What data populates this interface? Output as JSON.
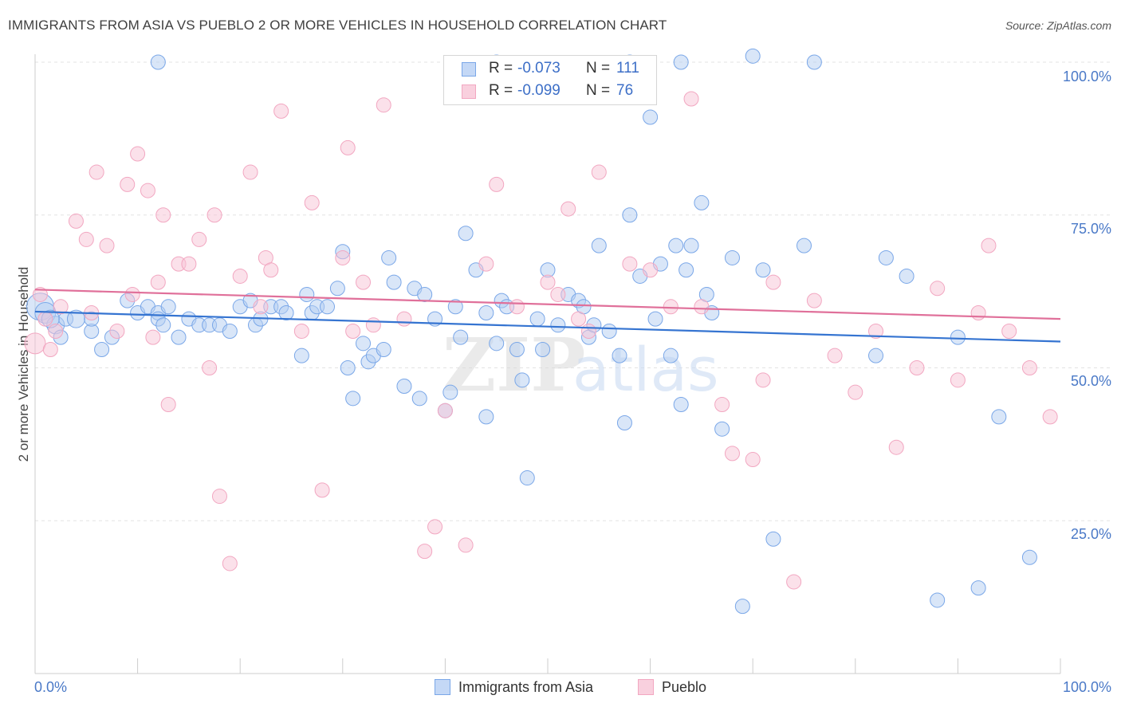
{
  "chart_data": {
    "type": "scatter",
    "title": "IMMIGRANTS FROM ASIA VS PUEBLO 2 OR MORE VEHICLES IN HOUSEHOLD CORRELATION CHART",
    "source": "Source: ZipAtlas.com",
    "ylabel": "2 or more Vehicles in Household",
    "xlabel": "",
    "xlim": [
      0,
      100
    ],
    "ylim": [
      0,
      100
    ],
    "x_tick_labels": [
      "0.0%",
      "100.0%"
    ],
    "y_ticks": [
      {
        "value": 25,
        "label": "25.0%"
      },
      {
        "value": 50,
        "label": "50.0%"
      },
      {
        "value": 75,
        "label": "75.0%"
      },
      {
        "value": 100,
        "label": "100.0%"
      }
    ],
    "grid": true,
    "watermark": "ZIPatlas",
    "legend": {
      "r_label": "R =",
      "n_label": "N =",
      "entries": [
        {
          "name": "Immigrants from Asia",
          "r": "-0.073",
          "n": "111"
        },
        {
          "name": "Pueblo",
          "r": "-0.099",
          "n": "76"
        }
      ]
    },
    "series": [
      {
        "name": "Immigrants from Asia",
        "color": "#7aa7e8",
        "trend_color": "#3574d1",
        "trend": [
          [
            0,
            59.2
          ],
          [
            100,
            54.3
          ]
        ],
        "points": [
          [
            0.5,
            60,
            4
          ],
          [
            1,
            59,
            3
          ],
          [
            2,
            57,
            2
          ],
          [
            3,
            58,
            1
          ],
          [
            4,
            58,
            2
          ],
          [
            1.5,
            58,
            2
          ],
          [
            2.5,
            55,
            1
          ],
          [
            5.5,
            56,
            1
          ],
          [
            5.5,
            58,
            1
          ],
          [
            6.5,
            53,
            1
          ],
          [
            7.5,
            55,
            1
          ],
          [
            9,
            61,
            1
          ],
          [
            10,
            59,
            1
          ],
          [
            11,
            60,
            1
          ],
          [
            12,
            59,
            1
          ],
          [
            12,
            58,
            1
          ],
          [
            14,
            55,
            1
          ],
          [
            12.5,
            57,
            1
          ],
          [
            13,
            60,
            1
          ],
          [
            15,
            58,
            1
          ],
          [
            16,
            57,
            1
          ],
          [
            17,
            57,
            1
          ],
          [
            18,
            57,
            1
          ],
          [
            19,
            56,
            1
          ],
          [
            20,
            60,
            1
          ],
          [
            21,
            61,
            1
          ],
          [
            21.5,
            57,
            1
          ],
          [
            22,
            58,
            1
          ],
          [
            23,
            60,
            1
          ],
          [
            24,
            60,
            1
          ],
          [
            24.5,
            59,
            1
          ],
          [
            26,
            52,
            1
          ],
          [
            26.5,
            62,
            1
          ],
          [
            27,
            59,
            1
          ],
          [
            27.5,
            60,
            1
          ],
          [
            28.5,
            60,
            1
          ],
          [
            29.5,
            63,
            1
          ],
          [
            30,
            69,
            1
          ],
          [
            30.5,
            50,
            1
          ],
          [
            31,
            45,
            1
          ],
          [
            32,
            54,
            1
          ],
          [
            32.5,
            51,
            1
          ],
          [
            33,
            52,
            1
          ],
          [
            34,
            53,
            1
          ],
          [
            34.5,
            68,
            1
          ],
          [
            35,
            64,
            1
          ],
          [
            36,
            47,
            1
          ],
          [
            37,
            63,
            1
          ],
          [
            37.5,
            45,
            1
          ],
          [
            38,
            62,
            1
          ],
          [
            39,
            58,
            1
          ],
          [
            40,
            43,
            1
          ],
          [
            40.5,
            46,
            1
          ],
          [
            41,
            60,
            1
          ],
          [
            41.5,
            55,
            1
          ],
          [
            42,
            72,
            1
          ],
          [
            43,
            66,
            1
          ],
          [
            44,
            59,
            1
          ],
          [
            44,
            42,
            1
          ],
          [
            45,
            54,
            1
          ],
          [
            45.5,
            61,
            1
          ],
          [
            46,
            60,
            1
          ],
          [
            47,
            53,
            1
          ],
          [
            47.5,
            48,
            1
          ],
          [
            48,
            32,
            1
          ],
          [
            49,
            58,
            1
          ],
          [
            49.5,
            53,
            1
          ],
          [
            50,
            66,
            1
          ],
          [
            51,
            57,
            1
          ],
          [
            52,
            62,
            1
          ],
          [
            53,
            61,
            1
          ],
          [
            53.5,
            60,
            1
          ],
          [
            54,
            55,
            1
          ],
          [
            54.5,
            57,
            1
          ],
          [
            55,
            70,
            1
          ],
          [
            56,
            56,
            1
          ],
          [
            57,
            52,
            1
          ],
          [
            57.5,
            41,
            1
          ],
          [
            58,
            75,
            1
          ],
          [
            59,
            65,
            1
          ],
          [
            60,
            91,
            1
          ],
          [
            60.5,
            58,
            1
          ],
          [
            61,
            67,
            1
          ],
          [
            62,
            52,
            1
          ],
          [
            62.5,
            70,
            1
          ],
          [
            63,
            44,
            1
          ],
          [
            63.5,
            66,
            1
          ],
          [
            64,
            70,
            1
          ],
          [
            65,
            77,
            1
          ],
          [
            65.5,
            62,
            1
          ],
          [
            66,
            59,
            1
          ],
          [
            67,
            40,
            1
          ],
          [
            68,
            68,
            1
          ],
          [
            69,
            11,
            1
          ],
          [
            70,
            101,
            1
          ],
          [
            71,
            66,
            1
          ],
          [
            72,
            22,
            1
          ],
          [
            75,
            70,
            1
          ],
          [
            76,
            100,
            1
          ],
          [
            82,
            52,
            1
          ],
          [
            83,
            68,
            1
          ],
          [
            85,
            65,
            1
          ],
          [
            88,
            12,
            1
          ],
          [
            90,
            55,
            1
          ],
          [
            92,
            14,
            1
          ],
          [
            94,
            42,
            1
          ],
          [
            97,
            19,
            1
          ],
          [
            12,
            100,
            1
          ],
          [
            45,
            100,
            1
          ],
          [
            58,
            100,
            1
          ],
          [
            63,
            100,
            1
          ]
        ]
      },
      {
        "name": "Pueblo",
        "color": "#f2a7c1",
        "trend_color": "#e0709a",
        "trend": [
          [
            0,
            62.8
          ],
          [
            100,
            58
          ]
        ],
        "points": [
          [
            0,
            54,
            3
          ],
          [
            0.5,
            62,
            1
          ],
          [
            1,
            58,
            1
          ],
          [
            1.5,
            53,
            1
          ],
          [
            2,
            56,
            1
          ],
          [
            2.5,
            60,
            1
          ],
          [
            4,
            74,
            1
          ],
          [
            5,
            71,
            1
          ],
          [
            5.5,
            59,
            1
          ],
          [
            6,
            82,
            1
          ],
          [
            7,
            70,
            1
          ],
          [
            8,
            56,
            1
          ],
          [
            9,
            80,
            1
          ],
          [
            9.5,
            62,
            1
          ],
          [
            10,
            85,
            1
          ],
          [
            11,
            79,
            1
          ],
          [
            11.5,
            55,
            1
          ],
          [
            12,
            64,
            1
          ],
          [
            12.5,
            75,
            1
          ],
          [
            13,
            44,
            1
          ],
          [
            14,
            67,
            1
          ],
          [
            15,
            67,
            1
          ],
          [
            16,
            71,
            1
          ],
          [
            17,
            50,
            1
          ],
          [
            17.5,
            75,
            1
          ],
          [
            18,
            29,
            1
          ],
          [
            19,
            18,
            1
          ],
          [
            20,
            65,
            1
          ],
          [
            21,
            82,
            1
          ],
          [
            22,
            60,
            1
          ],
          [
            22.5,
            68,
            1
          ],
          [
            23,
            66,
            1
          ],
          [
            24,
            92,
            1
          ],
          [
            26,
            56,
            1
          ],
          [
            27,
            77,
            1
          ],
          [
            28,
            30,
            1
          ],
          [
            30,
            68,
            1
          ],
          [
            30.5,
            86,
            1
          ],
          [
            31,
            56,
            1
          ],
          [
            32,
            64,
            1
          ],
          [
            33,
            57,
            1
          ],
          [
            34,
            93,
            1
          ],
          [
            36,
            58,
            1
          ],
          [
            38,
            20,
            1
          ],
          [
            39,
            24,
            1
          ],
          [
            40,
            43,
            1
          ],
          [
            42,
            21,
            1
          ],
          [
            44,
            67,
            1
          ],
          [
            45,
            80,
            1
          ],
          [
            47,
            60,
            1
          ],
          [
            50,
            64,
            1
          ],
          [
            51,
            62,
            1
          ],
          [
            52,
            76,
            1
          ],
          [
            53,
            58,
            1
          ],
          [
            54,
            56,
            1
          ],
          [
            55,
            82,
            1
          ],
          [
            58,
            67,
            1
          ],
          [
            60,
            66,
            1
          ],
          [
            62,
            60,
            1
          ],
          [
            64,
            94,
            1
          ],
          [
            65,
            60,
            1
          ],
          [
            67,
            44,
            1
          ],
          [
            68,
            36,
            1
          ],
          [
            70,
            35,
            1
          ],
          [
            71,
            48,
            1
          ],
          [
            72,
            64,
            1
          ],
          [
            74,
            15,
            1
          ],
          [
            76,
            61,
            1
          ],
          [
            78,
            52,
            1
          ],
          [
            80,
            46,
            1
          ],
          [
            82,
            56,
            1
          ],
          [
            84,
            37,
            1
          ],
          [
            86,
            50,
            1
          ],
          [
            88,
            63,
            1
          ],
          [
            90,
            48,
            1
          ],
          [
            92,
            59,
            1
          ],
          [
            93,
            70,
            1
          ],
          [
            95,
            56,
            1
          ],
          [
            97,
            50,
            1
          ],
          [
            99,
            42,
            1
          ]
        ]
      }
    ]
  }
}
